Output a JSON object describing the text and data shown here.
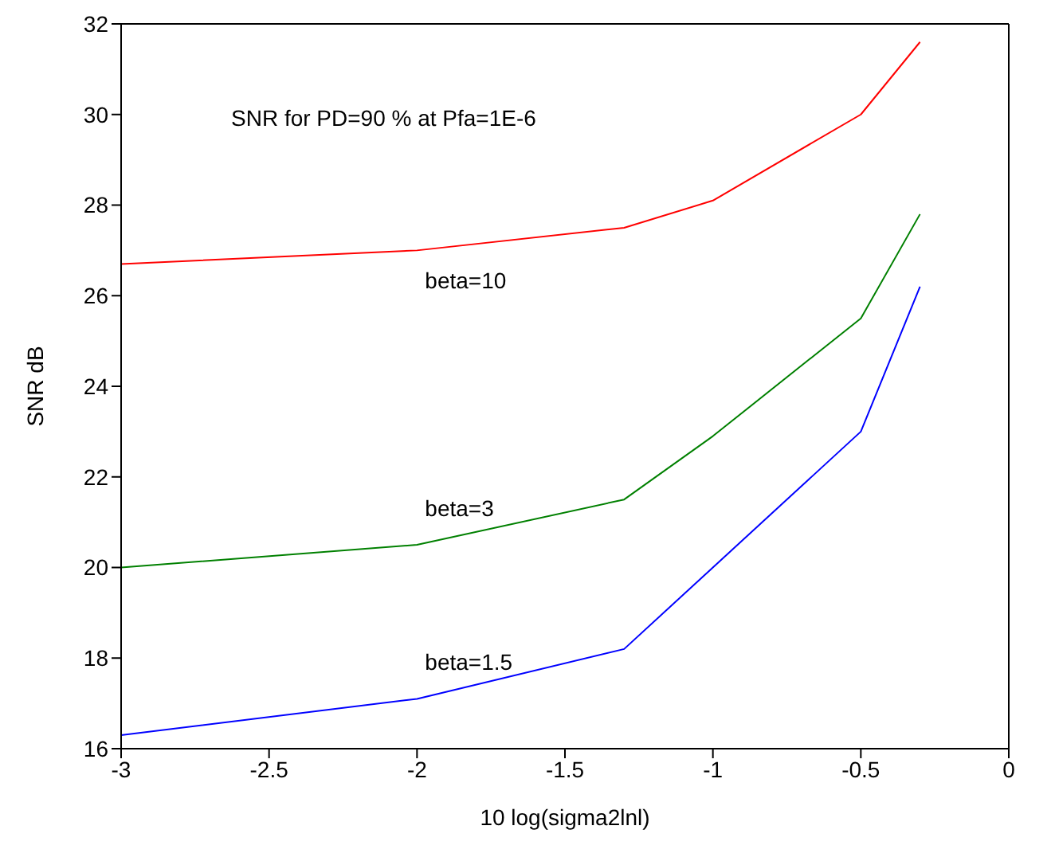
{
  "chart_data": {
    "type": "line",
    "xlabel": "10 log(sigma2lnl)",
    "ylabel": "SNR dB",
    "x": [
      -3,
      -2,
      -1.3,
      -1,
      -0.5,
      -0.3
    ],
    "series": [
      {
        "name": "beta=10",
        "color": "#ff0000",
        "values": [
          26.7,
          27.0,
          27.5,
          28.1,
          30.0,
          31.6
        ]
      },
      {
        "name": "beta=3",
        "color": "#008000",
        "values": [
          20.0,
          20.5,
          21.5,
          22.9,
          25.5,
          27.8
        ]
      },
      {
        "name": "beta=1.5",
        "color": "#0000ff",
        "values": [
          16.3,
          17.1,
          18.2,
          20.0,
          23.0,
          26.2
        ]
      }
    ],
    "xlim": [
      -3,
      0
    ],
    "xticks": [
      -3,
      -2.5,
      -2,
      -1.5,
      -1,
      -0.5,
      0
    ],
    "ylim": [
      16,
      32
    ],
    "yticks": [
      16,
      18,
      20,
      22,
      24,
      26,
      28,
      30,
      32
    ],
    "grid": false,
    "legend": false,
    "marker": "none",
    "line_style": "solid",
    "annotations": [
      "SNR for PD=90 % at Pfa=1E-6"
    ]
  }
}
